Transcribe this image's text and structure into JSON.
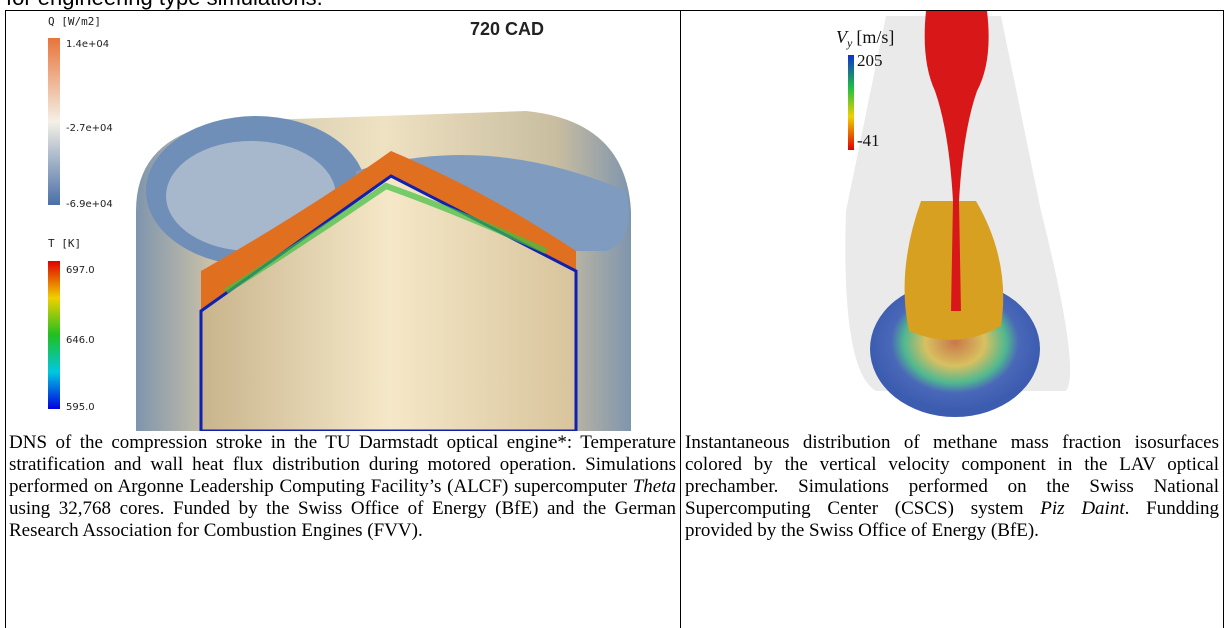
{
  "header": {
    "text": "for engineering type simulations."
  },
  "left": {
    "figure": {
      "title": "720 CAD",
      "colorbars": [
        {
          "label": "Q  [W/m2]",
          "ticks": [
            "1.4e+04",
            "-2.7e+04",
            "-6.9e+04"
          ]
        },
        {
          "label": "T  [K]",
          "ticks": [
            "697.0",
            "646.0",
            "595.0"
          ]
        }
      ]
    },
    "caption": [
      "DNS of the compression stroke in the TU Darmstadt optical engine*: Temperature stratification and wall heat flux distribution during motored operation. Simulations performed on Argonne Leadership Computing Facility’s (ALCF) supercomputer ",
      "Theta",
      " using  32,768 cores. Funded by the Swiss Office of Energy (BfE) and  the German Research Association for Combustion Engines (FVV)."
    ]
  },
  "right": {
    "figure": {
      "colorbar": {
        "symbol": "V",
        "subscript": "y",
        "unit": "[m/s]",
        "ticks": [
          "205",
          "-41"
        ]
      }
    },
    "caption": [
      "Instantaneous distribution of methane mass fraction isosurfaces colored by the vertical velocity component in the LAV optical prechamber. Simulations performed on the Swiss National Supercomputing Center (CSCS) system ",
      "Piz Daint",
      ". Fundding provided by the Swiss Office of Energy (BfE)."
    ]
  }
}
